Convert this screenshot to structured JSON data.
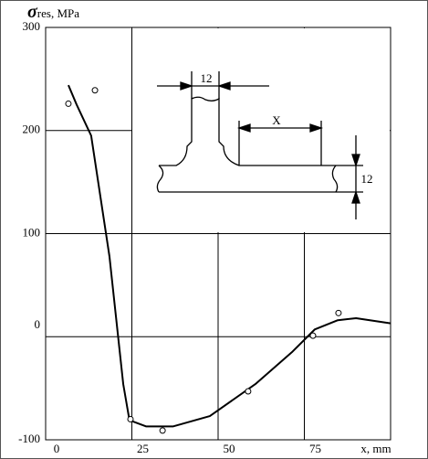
{
  "chart_data": {
    "type": "line",
    "ylabel_symbol": "σ",
    "ylabel_unit": "res, MPa",
    "xlabel": "x, mm",
    "xlim": [
      0,
      100
    ],
    "ylim": [
      -100,
      300
    ],
    "xticks": [
      0,
      25,
      50,
      75
    ],
    "yticks": [
      -100,
      0,
      100,
      200,
      300
    ],
    "grid": true,
    "color": "#000000",
    "curve": {
      "x": [
        6.6,
        9,
        13.2,
        18.5,
        22.5,
        24.3,
        29.1,
        37,
        47.6,
        60.8,
        71.4,
        78,
        84.7,
        90,
        100
      ],
      "values": [
        244,
        225,
        195,
        78,
        -46,
        -81,
        -87,
        -87,
        -77,
        -46,
        -15,
        7,
        16,
        18,
        13
      ]
    },
    "points": {
      "x": [
        6.6,
        14.3,
        24.6,
        33.9,
        58.7,
        77.5,
        84.9
      ],
      "values": [
        226,
        239,
        -80,
        -91,
        -53,
        1,
        23
      ]
    },
    "annotations": [
      "12",
      "X",
      "12"
    ]
  }
}
